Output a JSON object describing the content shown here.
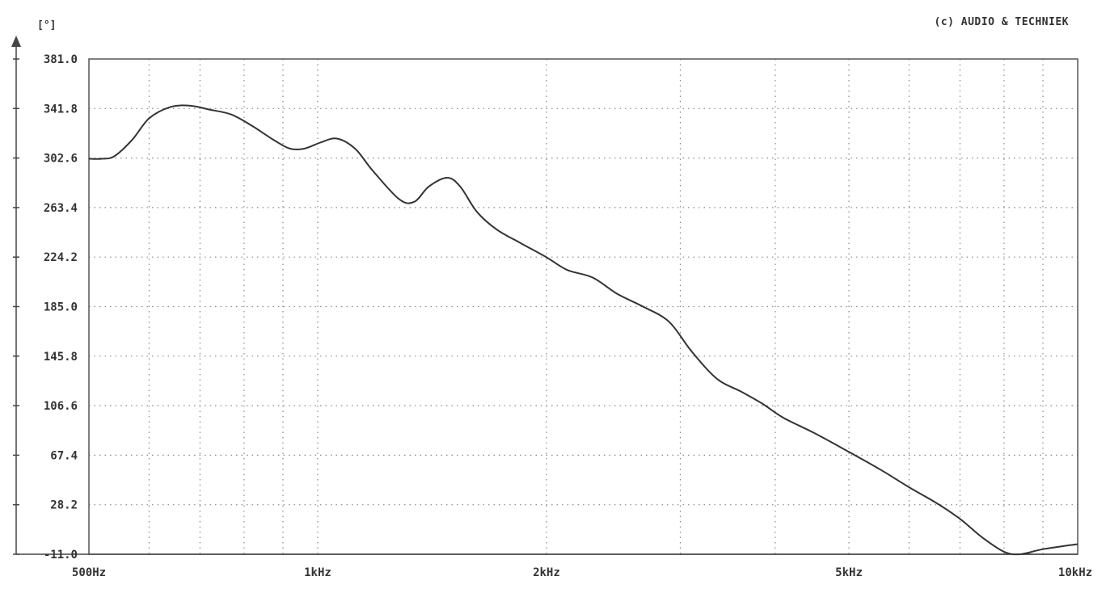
{
  "copyright": "(c) AUDIO & TECHNIEK",
  "y_unit": "[°]",
  "chart_data": {
    "type": "line",
    "title": "",
    "xlabel": "",
    "ylabel": "[°]",
    "x_scale": "log",
    "xlim": [
      500,
      10000
    ],
    "ylim": [
      -11.0,
      381.0
    ],
    "grid": true,
    "x_ticks": [
      {
        "value": 500,
        "label": "500Hz"
      },
      {
        "value": 1000,
        "label": "1kHz"
      },
      {
        "value": 2000,
        "label": "2kHz"
      },
      {
        "value": 5000,
        "label": "5kHz"
      },
      {
        "value": 10000,
        "label": "10kHz"
      }
    ],
    "y_ticks": [
      {
        "value": 381.0,
        "label": "381.0"
      },
      {
        "value": 341.8,
        "label": "341.8"
      },
      {
        "value": 302.6,
        "label": "302.6"
      },
      {
        "value": 263.4,
        "label": "263.4"
      },
      {
        "value": 224.2,
        "label": "224.2"
      },
      {
        "value": 185.0,
        "label": "185.0"
      },
      {
        "value": 145.8,
        "label": "145.8"
      },
      {
        "value": 106.6,
        "label": "106.6"
      },
      {
        "value": 67.4,
        "label": "67.4"
      },
      {
        "value": 28.2,
        "label": "28.2"
      },
      {
        "value": -11.0,
        "label": "-11.0"
      }
    ],
    "series": [
      {
        "color": "#333333",
        "x": [
          500,
          520,
          540,
          570,
          600,
          640,
          680,
          720,
          770,
          820,
          880,
          920,
          960,
          1010,
          1060,
          1120,
          1180,
          1280,
          1340,
          1400,
          1480,
          1540,
          1620,
          1720,
          1840,
          2000,
          2130,
          2300,
          2480,
          2680,
          2900,
          3100,
          3350,
          3600,
          3850,
          4100,
          4500,
          5000,
          5500,
          6000,
          6500,
          7000,
          7500,
          8000,
          8400,
          9000,
          10000
        ],
        "values": [
          302,
          302,
          304,
          317,
          334,
          343,
          344,
          341,
          337,
          328,
          316,
          310,
          310,
          315,
          318,
          310,
          293,
          270,
          268,
          280,
          287,
          280,
          260,
          246,
          236,
          224,
          214,
          208,
          195,
          185,
          173,
          150,
          128,
          118,
          108,
          97,
          85,
          70,
          56,
          42,
          30,
          17,
          2,
          -9,
          -11,
          -7,
          -3
        ]
      }
    ]
  }
}
